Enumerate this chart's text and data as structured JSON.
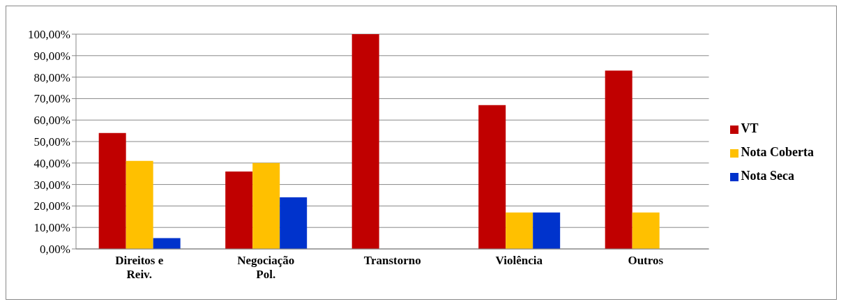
{
  "chart_data": {
    "type": "bar",
    "categories": [
      "Direitos e Reiv.",
      "Negociação Pol.",
      "Transtorno",
      "Violência",
      "Outros"
    ],
    "series": [
      {
        "name": "VT",
        "color": "#c00000",
        "values": [
          54,
          36,
          100,
          67,
          83
        ]
      },
      {
        "name": "Nota Coberta",
        "color": "#ffc000",
        "values": [
          41,
          40,
          0,
          17,
          17
        ]
      },
      {
        "name": "Nota Seca",
        "color": "#0033cc",
        "values": [
          5,
          24,
          0,
          17,
          0
        ]
      }
    ],
    "ylim": [
      0,
      100
    ],
    "yticks": [
      {
        "value": 0,
        "label": "0,00%"
      },
      {
        "value": 10,
        "label": "10,00%"
      },
      {
        "value": 20,
        "label": "20,00%"
      },
      {
        "value": 30,
        "label": "30,00%"
      },
      {
        "value": 40,
        "label": "40,00%"
      },
      {
        "value": 50,
        "label": "50,00%"
      },
      {
        "value": 60,
        "label": "60,00%"
      },
      {
        "value": 70,
        "label": "70,00%"
      },
      {
        "value": 80,
        "label": "80,00%"
      },
      {
        "value": 90,
        "label": "90,00%"
      },
      {
        "value": 100,
        "label": "100,00%"
      }
    ],
    "grid": "y",
    "legend": "right"
  }
}
